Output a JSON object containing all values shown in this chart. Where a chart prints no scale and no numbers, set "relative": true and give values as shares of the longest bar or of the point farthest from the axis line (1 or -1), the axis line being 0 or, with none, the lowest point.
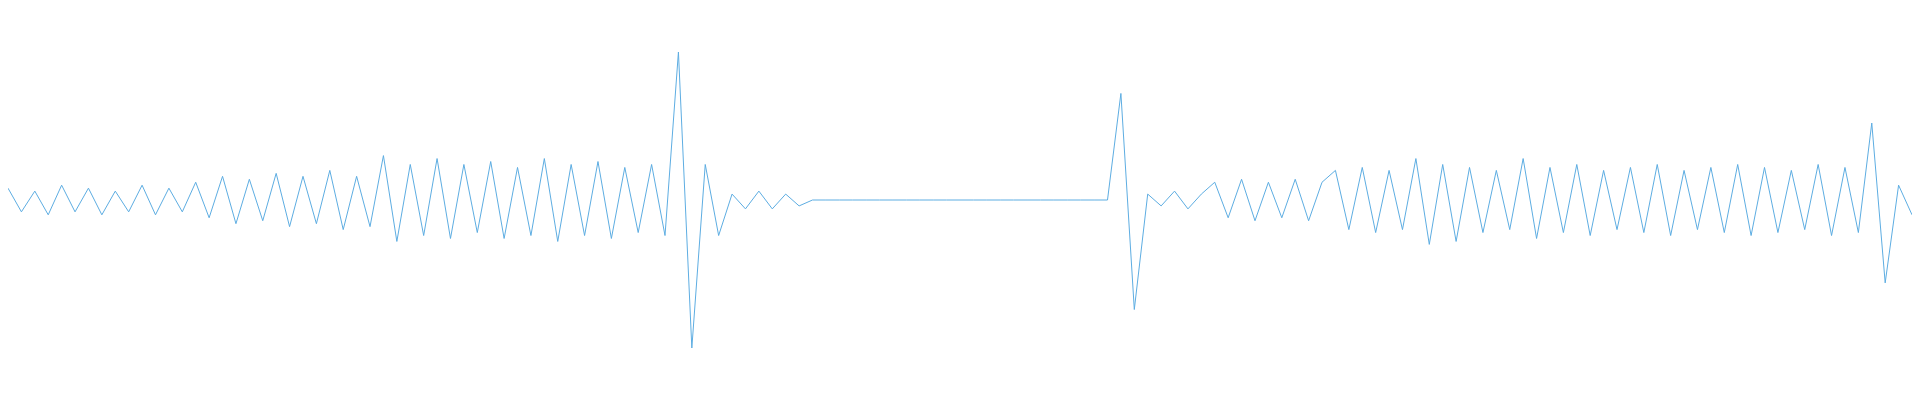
{
  "chart_data": {
    "type": "line",
    "relative": true,
    "categories": [
      null,
      null,
      null,
      null,
      null,
      null,
      null,
      null,
      null,
      null,
      null,
      null,
      null,
      null,
      null,
      null,
      null,
      null,
      null,
      null,
      null,
      null,
      null,
      null,
      null,
      null,
      null,
      null,
      null,
      null,
      null,
      null,
      null,
      null,
      null,
      null,
      null,
      null,
      null,
      null,
      null,
      null,
      null,
      null,
      null,
      null,
      null,
      null,
      null,
      null,
      null,
      null,
      null,
      null,
      null,
      null,
      null,
      null,
      null,
      null,
      null,
      null,
      null,
      null,
      null,
      null,
      null,
      null,
      null,
      null,
      null,
      null,
      null,
      null,
      null,
      null,
      null,
      null,
      null,
      null,
      null,
      null,
      null,
      null,
      null,
      null,
      null,
      null,
      null,
      null,
      null,
      null,
      null,
      null,
      null,
      null,
      null,
      null,
      null,
      null,
      null,
      null,
      null,
      null,
      null,
      null,
      null,
      null,
      null,
      null,
      null,
      null,
      null,
      null,
      null,
      null,
      null,
      null,
      null,
      null,
      null,
      null,
      null,
      null,
      null,
      null,
      null,
      null,
      null,
      null,
      null,
      null,
      null,
      null,
      null,
      null,
      null,
      null,
      null,
      null,
      null,
      null,
      null
    ],
    "series": [
      {
        "color": "#5dade2",
        "values": [
          0.54,
          0.46,
          0.53,
          0.45,
          0.55,
          0.46,
          0.54,
          0.45,
          0.53,
          0.46,
          0.55,
          0.45,
          0.54,
          0.46,
          0.56,
          0.44,
          0.58,
          0.42,
          0.57,
          0.43,
          0.59,
          0.41,
          0.58,
          0.42,
          0.6,
          0.4,
          0.58,
          0.41,
          0.65,
          0.36,
          0.62,
          0.38,
          0.64,
          0.37,
          0.62,
          0.39,
          0.63,
          0.37,
          0.61,
          0.38,
          0.64,
          0.36,
          0.62,
          0.38,
          0.63,
          0.37,
          0.61,
          0.39,
          0.62,
          0.38,
          1.0,
          0.0,
          0.62,
          0.38,
          0.52,
          0.47,
          0.53,
          0.47,
          0.52,
          0.48,
          0.5,
          0.5,
          0.5,
          0.5,
          0.5,
          0.5,
          0.5,
          0.5,
          0.5,
          0.5,
          0.5,
          0.5,
          0.5,
          0.5,
          0.5,
          0.5,
          0.5,
          0.5,
          0.5,
          0.5,
          0.5,
          0.5,
          0.5,
          0.86,
          0.13,
          0.52,
          0.48,
          0.53,
          0.47,
          0.52,
          0.56,
          0.44,
          0.57,
          0.43,
          0.56,
          0.44,
          0.57,
          0.43,
          0.56,
          0.6,
          0.4,
          0.61,
          0.39,
          0.6,
          0.4,
          0.64,
          0.35,
          0.62,
          0.36,
          0.61,
          0.39,
          0.6,
          0.4,
          0.64,
          0.37,
          0.61,
          0.39,
          0.62,
          0.38,
          0.6,
          0.4,
          0.61,
          0.39,
          0.62,
          0.38,
          0.6,
          0.4,
          0.61,
          0.39,
          0.62,
          0.38,
          0.61,
          0.39,
          0.6,
          0.4,
          0.62,
          0.38,
          0.61,
          0.39,
          0.76,
          0.22,
          0.55,
          0.45
        ]
      }
    ]
  }
}
